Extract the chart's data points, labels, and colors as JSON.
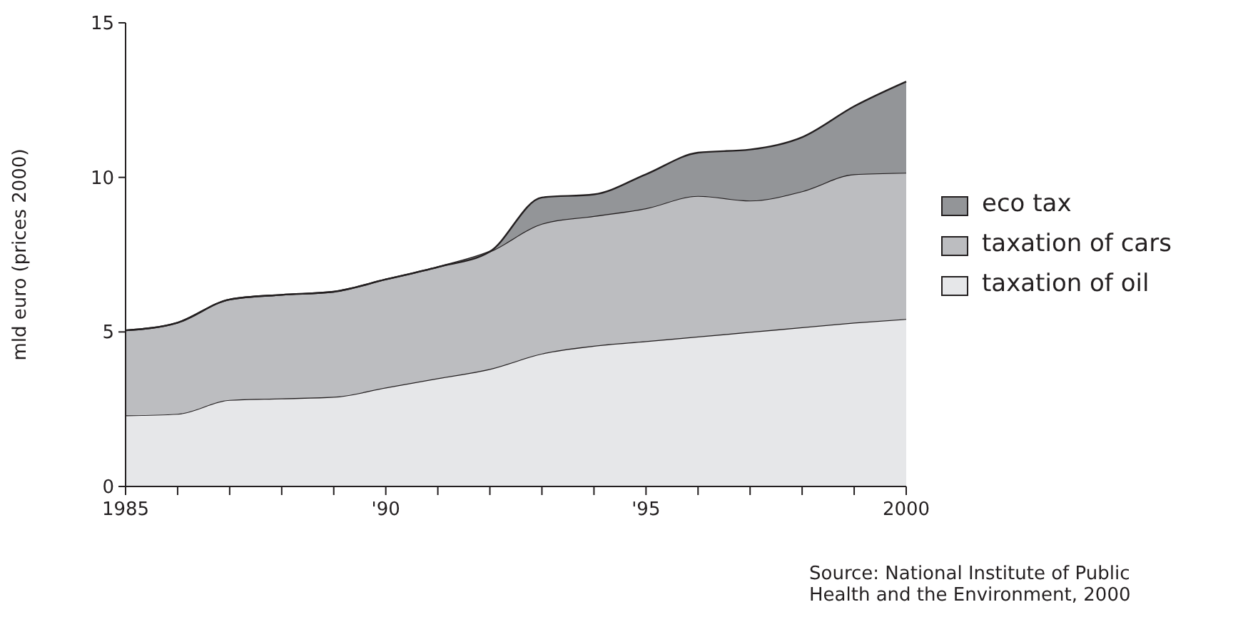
{
  "chart_data": {
    "type": "area",
    "stacked": true,
    "ylabel": "mld euro (prices 2000)",
    "x": [
      1985,
      1986,
      1987,
      1988,
      1989,
      1990,
      1991,
      1992,
      1993,
      1994,
      1995,
      1996,
      1997,
      1998,
      1999,
      2000
    ],
    "xlim": [
      1985,
      2000
    ],
    "xticks": [
      1985,
      {
        "value": 1986,
        "label": null
      },
      {
        "value": 1987,
        "label": null
      },
      {
        "value": 1988,
        "label": null
      },
      {
        "value": 1989,
        "label": null
      },
      {
        "value": 1990,
        "label": "'90"
      },
      {
        "value": 1991,
        "label": null
      },
      {
        "value": 1992,
        "label": null
      },
      {
        "value": 1993,
        "label": null
      },
      {
        "value": 1994,
        "label": null
      },
      {
        "value": 1995,
        "label": "'95"
      },
      {
        "value": 1996,
        "label": null
      },
      {
        "value": 1997,
        "label": null
      },
      {
        "value": 1998,
        "label": null
      },
      {
        "value": 1999,
        "label": null
      },
      2000
    ],
    "ylim": [
      0,
      15
    ],
    "yticks": [
      0,
      5,
      10,
      15
    ],
    "grid": false,
    "legend": "right",
    "series": [
      {
        "name": "taxation of oil",
        "color": "#e6e7e9",
        "values": [
          2.3,
          2.35,
          2.8,
          2.85,
          2.9,
          3.2,
          3.5,
          3.8,
          4.3,
          4.55,
          4.7,
          4.85,
          5.0,
          5.15,
          5.3,
          5.42
        ]
      },
      {
        "name": "taxation of cars",
        "color": "#bcbdc0",
        "values": [
          2.75,
          2.95,
          3.25,
          3.35,
          3.4,
          3.5,
          3.6,
          3.8,
          4.2,
          4.2,
          4.3,
          4.55,
          4.25,
          4.4,
          4.8,
          4.73
        ]
      },
      {
        "name": "eco tax",
        "color": "#939598",
        "values": [
          0,
          0,
          0,
          0,
          0,
          0,
          0,
          0,
          0.85,
          0.7,
          1.1,
          1.4,
          1.65,
          1.75,
          2.2,
          2.95
        ]
      }
    ],
    "annotations": [
      "Source: National Institute of Public\nHealth and the Environment, 2000"
    ]
  }
}
